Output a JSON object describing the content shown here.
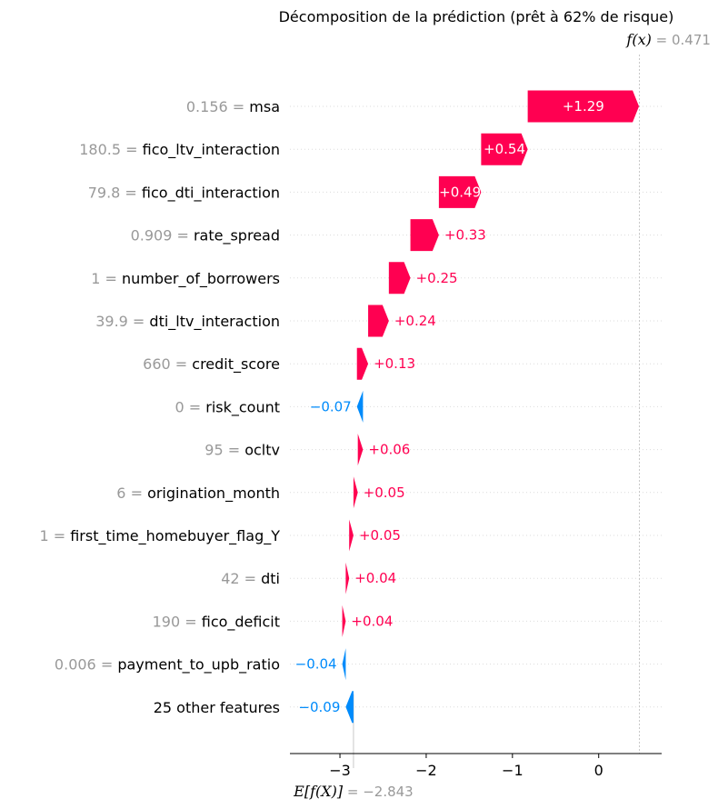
{
  "chart_data": {
    "type": "waterfall",
    "title": "Décomposition de la prédiction (prêt à 62% de risque)",
    "base_value": -2.843,
    "base_value_label": "−2.843",
    "output_value": 0.471,
    "output_value_label": "0.471",
    "base_value_prefix": "E[f(X)]",
    "output_value_prefix": "f(x)",
    "xlim": [
      -3.58,
      0.73
    ],
    "x_ticks": [
      {
        "value": -3,
        "label": "−3"
      },
      {
        "value": -2,
        "label": "−2"
      },
      {
        "value": -1,
        "label": "−1"
      },
      {
        "value": 0,
        "label": "0"
      }
    ],
    "colors": {
      "positive": "#ff0051",
      "negative": "#008bfb",
      "feature_value": "#999999",
      "grid": "#cccccc"
    },
    "features": [
      {
        "name": "msa",
        "value": "0.156",
        "shap": 1.29,
        "label": "+1.29"
      },
      {
        "name": "fico_ltv_interaction",
        "value": "180.5",
        "shap": 0.54,
        "label": "+0.54"
      },
      {
        "name": "fico_dti_interaction",
        "value": "79.8",
        "shap": 0.49,
        "label": "+0.49"
      },
      {
        "name": "rate_spread",
        "value": "0.909",
        "shap": 0.33,
        "label": "+0.33"
      },
      {
        "name": "number_of_borrowers",
        "value": "1",
        "shap": 0.25,
        "label": "+0.25"
      },
      {
        "name": "dti_ltv_interaction",
        "value": "39.9",
        "shap": 0.24,
        "label": "+0.24"
      },
      {
        "name": "credit_score",
        "value": "660",
        "shap": 0.13,
        "label": "+0.13"
      },
      {
        "name": "risk_count",
        "value": "0",
        "shap": -0.07,
        "label": "−0.07"
      },
      {
        "name": "ocltv",
        "value": "95",
        "shap": 0.06,
        "label": "+0.06"
      },
      {
        "name": "origination_month",
        "value": "6",
        "shap": 0.05,
        "label": "+0.05"
      },
      {
        "name": "first_time_homebuyer_flag_Y",
        "value": "1",
        "shap": 0.05,
        "label": "+0.05"
      },
      {
        "name": "dti",
        "value": "42",
        "shap": 0.04,
        "label": "+0.04"
      },
      {
        "name": "fico_deficit",
        "value": "190",
        "shap": 0.04,
        "label": "+0.04"
      },
      {
        "name": "payment_to_upb_ratio",
        "value": "0.006",
        "shap": -0.04,
        "label": "−0.04"
      },
      {
        "name": "25 other features",
        "value": "",
        "shap": -0.09,
        "label": "−0.09"
      }
    ]
  }
}
